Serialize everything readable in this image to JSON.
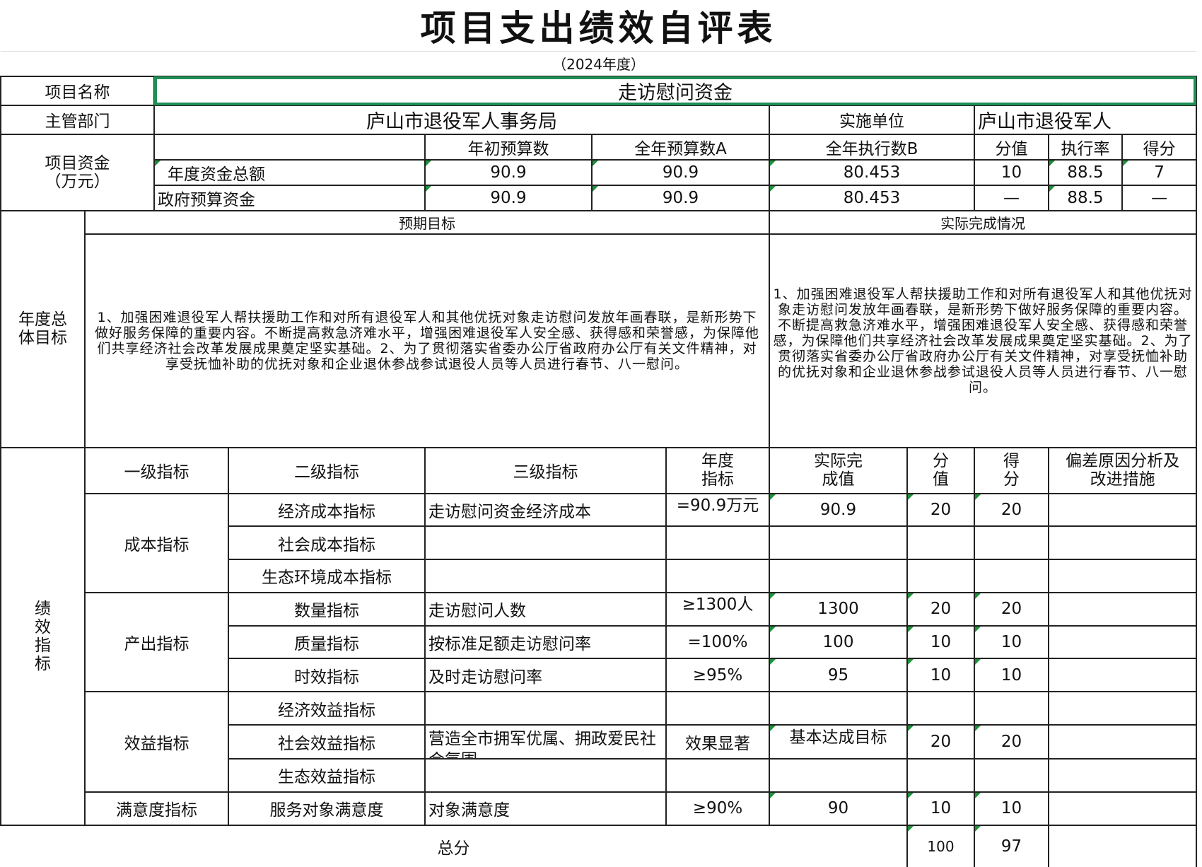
{
  "title": "项目支出绩效自评表",
  "subtitle": "（2024年度）",
  "project": {
    "name_label": "项目名称",
    "name_value": "走访慰问资金",
    "dept_label": "主管部门",
    "dept_value": "庐山市退役军人事务局",
    "impl_label": "实施单位",
    "impl_value": "庐山市退役军人"
  },
  "funds": {
    "label": "项目资金（万元）",
    "headers": [
      "年初预算数",
      "全年预算数A",
      "全年执行数B",
      "分值",
      "执行率",
      "得分"
    ],
    "rows": [
      {
        "label": "年度资金总额",
        "initial": "90.9",
        "annual_a": "90.9",
        "exec_b": "80.453",
        "score_value": "10",
        "rate": "88.5",
        "score": "7"
      },
      {
        "label": "政府预算资金",
        "initial": "90.9",
        "annual_a": "90.9",
        "exec_b": "80.453",
        "score_value": "—",
        "rate": "88.5",
        "score": "—"
      }
    ]
  },
  "goals": {
    "label": "年度总体目标",
    "expected_header": "预期目标",
    "actual_header": "实际完成情况",
    "expected_text": "1、加强困难退役军人帮扶援助工作和对所有退役军人和其他优抚对象走访慰问发放年画春联，是新形势下做好服务保障的重要内容。不断提高救急济难水平，增强困难退役军人安全感、获得感和荣誉感，为保障他们共享经济社会改革发展成果奠定坚实基础。2、为了贯彻落实省委办公厅省政府办公厅有关文件精神，对享受抚恤补助的优抚对象和企业退休参战参试退役人员等人员进行春节、八一慰问。",
    "actual_text": "1、加强困难退役军人帮扶援助工作和对所有退役军人和其他优抚对象走访慰问发放年画春联，是新形势下做好服务保障的重要内容。不断提高救急济难水平，增强困难退役军人安全感、获得感和荣誉感，为保障他们共享经济社会改革发展成果奠定坚实基础。2、为了贯彻落实省委办公厅省政府办公厅有关文件精神，对享受抚恤补助的优抚对象和企业退休参战参试退役人员等人员进行春节、八一慰问。"
  },
  "indicators": {
    "label": "绩效指标",
    "headers": {
      "level1": "一级指标",
      "level2": "二级指标",
      "level3": "三级指标",
      "target": "年度指标",
      "actual": "实际完成值",
      "score_value": "分值",
      "score": "得分",
      "deviation": "偏差原因分析及改进措施"
    },
    "groups": [
      {
        "level1": "成本指标",
        "rows": [
          {
            "level2": "经济成本指标",
            "level3": "走访慰问资金经济成本",
            "target": "=90.9万元",
            "actual": "90.9",
            "score_value": "20",
            "score": "20"
          },
          {
            "level2": "社会成本指标",
            "level3": "",
            "target": "",
            "actual": "",
            "score_value": "",
            "score": ""
          },
          {
            "level2": "生态环境成本指标",
            "level3": "",
            "target": "",
            "actual": "",
            "score_value": "",
            "score": ""
          }
        ]
      },
      {
        "level1": "产出指标",
        "rows": [
          {
            "level2": "数量指标",
            "level3": "走访慰问人数",
            "target": "≥1300人",
            "actual": "1300",
            "score_value": "20",
            "score": "20"
          },
          {
            "level2": "质量指标",
            "level3": "按标准足额走访慰问率",
            "target": "=100%",
            "actual": "100",
            "score_value": "10",
            "score": "10"
          },
          {
            "level2": "时效指标",
            "level3": "及时走访慰问率",
            "target": "≥95%",
            "actual": "95",
            "score_value": "10",
            "score": "10"
          }
        ]
      },
      {
        "level1": "效益指标",
        "rows": [
          {
            "level2": "经济效益指标",
            "level3": "",
            "target": "",
            "actual": "",
            "score_value": "",
            "score": ""
          },
          {
            "level2": "社会效益指标",
            "level3": "营造全市拥军优属、拥政爱民社会氛围",
            "target": "效果显著",
            "actual": "基本达成目标",
            "score_value": "20",
            "score": "20"
          },
          {
            "level2": "生态效益指标",
            "level3": "",
            "target": "",
            "actual": "",
            "score_value": "",
            "score": ""
          }
        ]
      },
      {
        "level1": "满意度指标",
        "rows": [
          {
            "level2": "服务对象满意度",
            "level3": "对象满意度",
            "target": "≥90%",
            "actual": "90",
            "score_value": "10",
            "score": "10"
          }
        ]
      }
    ]
  },
  "total": {
    "label": "总分",
    "score_value": "100",
    "score": "97"
  },
  "colors": {
    "selection": "#1f8f55",
    "cell_marker": "#1e8f3a",
    "grid": "#222222"
  }
}
